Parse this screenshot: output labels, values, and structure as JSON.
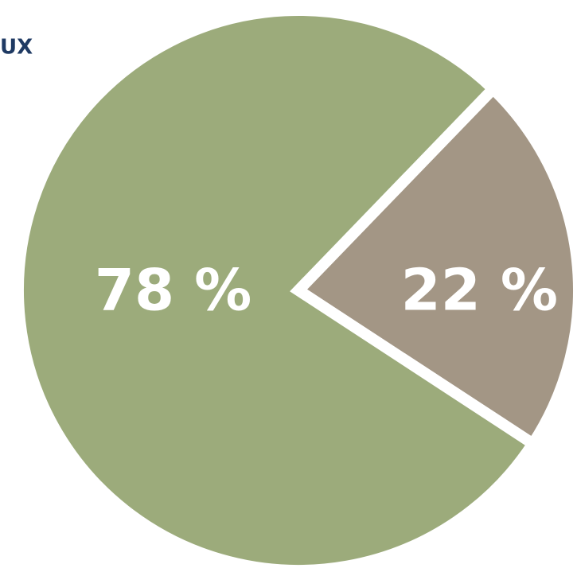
{
  "chart_data": {
    "type": "pie",
    "title": "UX",
    "categories": [
      null,
      null
    ],
    "values": [
      22,
      78
    ],
    "value_labels": [
      "22 %",
      "78 %"
    ],
    "colors": [
      "#a39685",
      "#9cab7b"
    ]
  }
}
